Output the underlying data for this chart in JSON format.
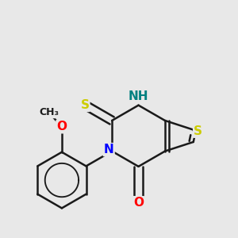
{
  "bg_color": "#e8e8e8",
  "bond_color": "#1a1a1a",
  "bond_width": 1.8,
  "atom_colors": {
    "N": "#0000ff",
    "S": "#cccc00",
    "O": "#ff0000",
    "NH": "#008080",
    "C": "#1a1a1a"
  },
  "font_size_atom": 11,
  "font_size_small": 9
}
